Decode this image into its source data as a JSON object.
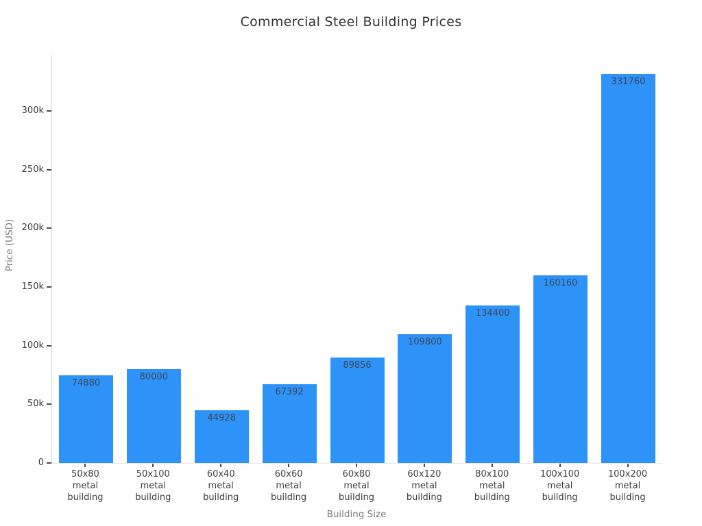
{
  "chart_data": {
    "type": "bar",
    "title": "Commercial Steel Building Prices",
    "xlabel": "Building Size",
    "ylabel": "Price (USD)",
    "categories": [
      "50x80 metal building",
      "50x100 metal building",
      "60x40 metal building",
      "60x60 metal building",
      "60x80 metal building",
      "60x120 metal building",
      "80x100 metal building",
      "100x100 metal building",
      "100x200 metal building"
    ],
    "values": [
      74880,
      80000,
      44928,
      67392,
      89856,
      109800,
      134400,
      160160,
      331760
    ],
    "bar_labels": [
      "74880",
      "80000",
      "44928",
      "67392",
      "89856",
      "109800",
      "134400",
      "160160",
      "331760"
    ],
    "y_ticks": [
      {
        "value": 0,
        "label": "0"
      },
      {
        "value": 50000,
        "label": "50k"
      },
      {
        "value": 100000,
        "label": "100k"
      },
      {
        "value": 150000,
        "label": "150k"
      },
      {
        "value": 200000,
        "label": "200k"
      },
      {
        "value": 250000,
        "label": "250k"
      },
      {
        "value": 300000,
        "label": "300k"
      }
    ],
    "ylim": [
      0,
      348000
    ],
    "grid": false,
    "legend": null,
    "colors": {
      "bar": "#2e93f8",
      "bar_label": "#3a4754",
      "axis_line": "#d9d9d9",
      "tick": "#4a4a4a",
      "tick_label": "#3d3d3d",
      "axis_title": "#7c7c7c",
      "title": "#333333",
      "background": "#ffffff"
    }
  }
}
